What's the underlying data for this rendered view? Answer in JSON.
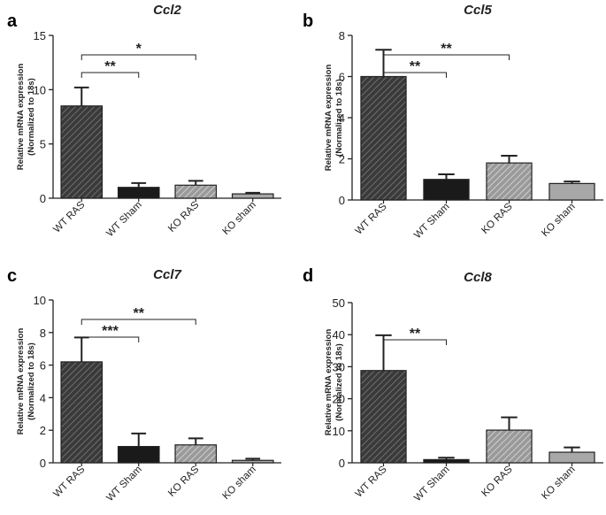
{
  "chart_data": [
    {
      "panel": "a",
      "type": "bar",
      "title": "Ccl2",
      "ylabel_line1": "Relative mRNA expression",
      "ylabel_line2": "(Normalized to 18s)",
      "categories": [
        "WT RAS",
        "WT Sham",
        "KO RAS",
        "KO sham"
      ],
      "values": [
        8.5,
        1.0,
        1.2,
        0.4
      ],
      "errors": [
        1.7,
        0.4,
        0.4,
        0.1
      ],
      "ylim": [
        0,
        15
      ],
      "yticks": [
        "0",
        "5",
        "10",
        "15"
      ],
      "ytick_values": [
        0,
        5,
        10,
        15
      ],
      "significance": [
        {
          "from": 0,
          "to": 1,
          "label": "**",
          "level": 1
        },
        {
          "from": 0,
          "to": 2,
          "label": "*",
          "level": 2
        }
      ]
    },
    {
      "panel": "b",
      "type": "bar",
      "title": "Ccl5",
      "ylabel_line1": "Relative mRNA expression",
      "ylabel_line2": "(Normalized to 18s)",
      "categories": [
        "WT RAS",
        "WT Sham",
        "KO RAS",
        "KO sham"
      ],
      "values": [
        6.0,
        1.0,
        1.8,
        0.8
      ],
      "errors": [
        1.3,
        0.25,
        0.35,
        0.1
      ],
      "ylim": [
        0,
        8
      ],
      "yticks": [
        "0",
        "2",
        "4",
        "6",
        "8"
      ],
      "ytick_values": [
        0,
        2,
        4,
        6,
        8
      ],
      "significance": [
        {
          "from": 0,
          "to": 1,
          "label": "**",
          "level": 1
        },
        {
          "from": 0,
          "to": 2,
          "label": "**",
          "level": 2
        }
      ]
    },
    {
      "panel": "c",
      "type": "bar",
      "title": "Ccl7",
      "ylabel_line1": "Relative mRNA expression",
      "ylabel_line2": "(Normalized to 18s)",
      "categories": [
        "WT RAS",
        "WT Sham",
        "KO RAS",
        "KO sham"
      ],
      "values": [
        6.2,
        1.0,
        1.1,
        0.15
      ],
      "errors": [
        1.5,
        0.8,
        0.4,
        0.1
      ],
      "ylim": [
        0,
        10
      ],
      "yticks": [
        "0",
        "2",
        "4",
        "6",
        "8",
        "10"
      ],
      "ytick_values": [
        0,
        2,
        4,
        6,
        8,
        10
      ],
      "significance": [
        {
          "from": 0,
          "to": 1,
          "label": "***",
          "level": 1
        },
        {
          "from": 0,
          "to": 2,
          "label": "**",
          "level": 2
        }
      ]
    },
    {
      "panel": "d",
      "type": "bar",
      "title": "Ccl8",
      "ylabel_line1": "Relative mRNA expression",
      "ylabel_line2": "(Normalized to 18s)",
      "categories": [
        "WT RAS",
        "WT Sham",
        "KO RAS",
        "KO sham"
      ],
      "values": [
        28.8,
        1.0,
        10.2,
        3.3
      ],
      "errors": [
        11.0,
        0.6,
        4.0,
        1.5
      ],
      "ylim": [
        0,
        50
      ],
      "yticks": [
        "0",
        "10",
        "20",
        "30",
        "40",
        "50"
      ],
      "ytick_values": [
        0,
        10,
        20,
        30,
        40,
        50
      ],
      "significance": [
        {
          "from": 0,
          "to": 1,
          "label": "**",
          "level": 1
        }
      ]
    }
  ],
  "colors": {
    "axis": "#222222",
    "wt_ras_fill": "#3a3a3a",
    "wt_sham_fill": "#1a1a1a",
    "ko_ras_fill": "#9a9a9a",
    "ko_sham_fill": "#a8a8a8",
    "hatch_dark": "#6a6a6a",
    "hatch_light": "#d8d8d8"
  }
}
